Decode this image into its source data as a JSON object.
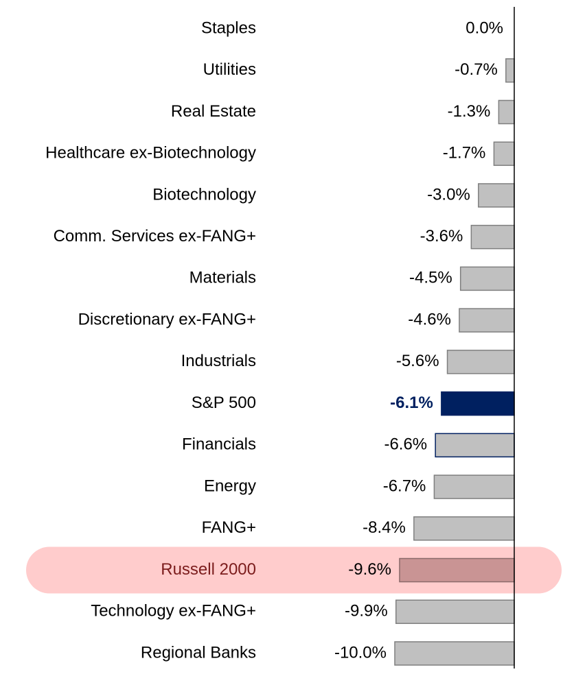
{
  "chart_data": {
    "type": "hbar",
    "categories": [
      "Staples",
      "Utilities",
      "Real Estate",
      "Healthcare ex-Biotechnology",
      "Biotechnology",
      "Comm. Services ex-FANG+",
      "Materials",
      "Discretionary ex-FANG+",
      "Industrials",
      "S&P 500",
      "Financials",
      "Energy",
      "FANG+",
      "Russell 2000",
      "Technology ex-FANG+",
      "Regional Banks"
    ],
    "values": [
      0.0,
      -0.7,
      -1.3,
      -1.7,
      -3.0,
      -3.6,
      -4.5,
      -4.6,
      -5.6,
      -6.1,
      -6.6,
      -6.7,
      -8.4,
      -9.6,
      -9.9,
      -10.0
    ],
    "value_labels": [
      "0.0%",
      "-0.7%",
      "-1.3%",
      "-1.7%",
      "-3.0%",
      "-3.6%",
      "-4.5%",
      "-4.6%",
      "-5.6%",
      "-6.1%",
      "-6.6%",
      "-6.7%",
      "-8.4%",
      "-9.6%",
      "-9.9%",
      "-10.0%"
    ],
    "colors": [
      "#c0c0c0",
      "#c0c0c0",
      "#c0c0c0",
      "#c0c0c0",
      "#c0c0c0",
      "#c0c0c0",
      "#c0c0c0",
      "#c0c0c0",
      "#c0c0c0",
      "#002060",
      "#c0c0c0",
      "#c0c0c0",
      "#c0c0c0",
      "#c99494",
      "#c0c0c0",
      "#c0c0c0"
    ],
    "border_colors": [
      "#7f7f7f",
      "#7f7f7f",
      "#7f7f7f",
      "#7f7f7f",
      "#7f7f7f",
      "#7f7f7f",
      "#7f7f7f",
      "#7f7f7f",
      "#7f7f7f",
      "#002060",
      "#002060",
      "#7f7f7f",
      "#7f7f7f",
      "#8a6a6a",
      "#7f7f7f",
      "#7f7f7f"
    ],
    "emphasis": {
      "bold": "S&P 500",
      "highlight": "Russell 2000"
    },
    "xlim": [
      -10,
      0
    ]
  }
}
